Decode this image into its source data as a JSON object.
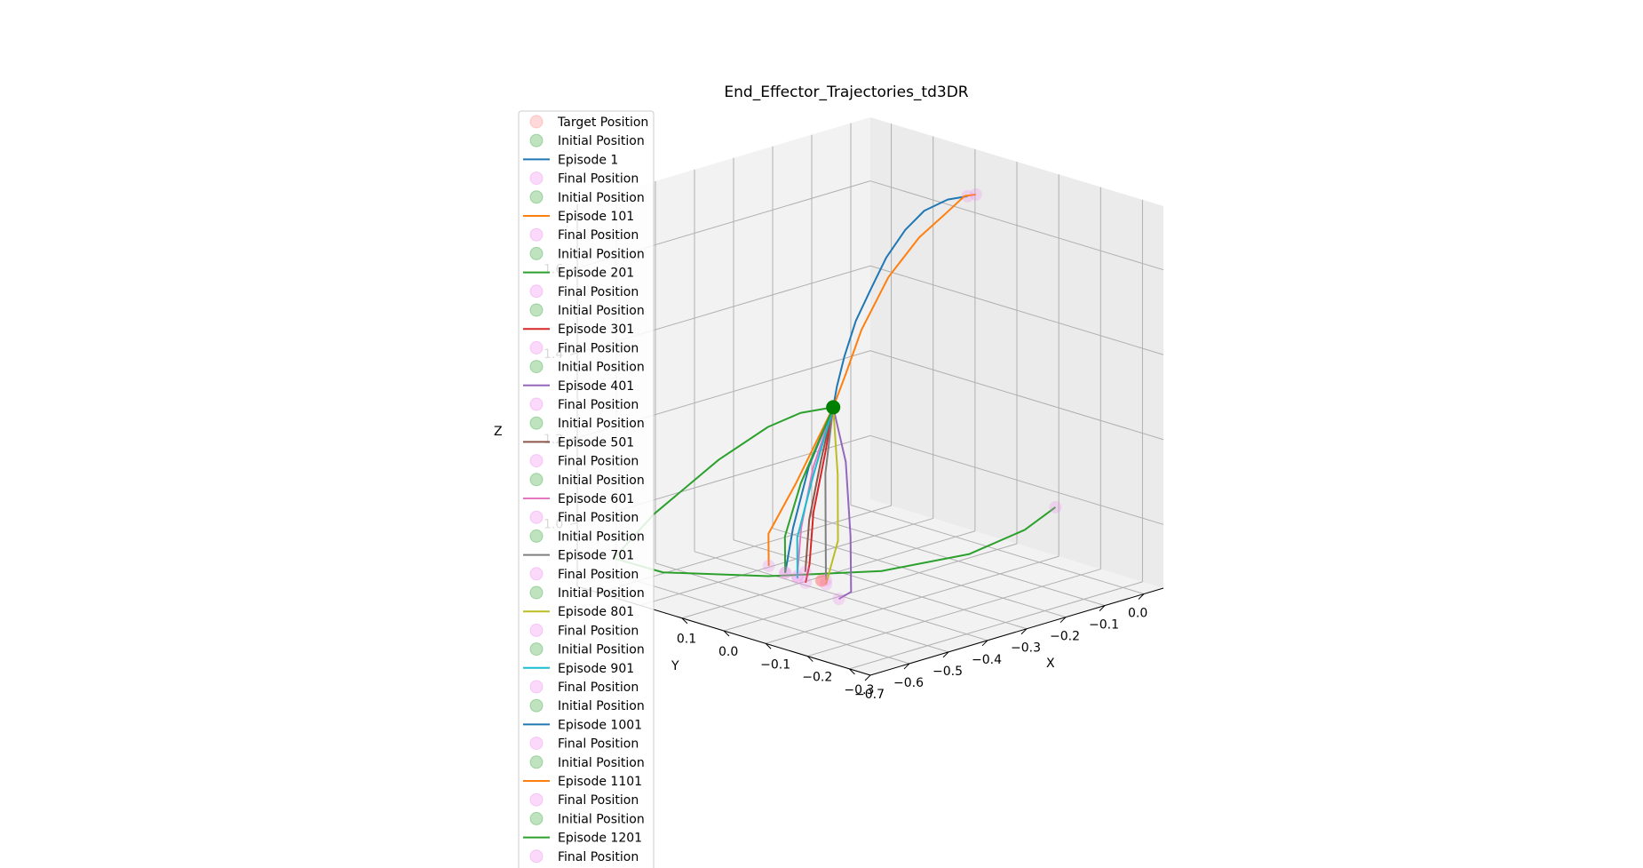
{
  "chart_data": {
    "type": "line",
    "projection": "3d",
    "title": "End_Effector_Trajectories_td3DR",
    "xlabel": "X",
    "ylabel": "Y",
    "zlabel": "Z",
    "x_ticks": [
      "−0.7",
      "−0.6",
      "−0.5",
      "−0.4",
      "−0.3",
      "−0.2",
      "−0.1",
      "0.0"
    ],
    "y_ticks": [
      "0.1",
      "0.0",
      "−0.1",
      "−0.2",
      "−0.3"
    ],
    "z_ticks": [
      "1.0",
      "1.2",
      "1.4",
      "1.6"
    ],
    "grid": true,
    "legend_placement": "upper-left (overflows below axes)",
    "colors": {
      "target": "#ff8080",
      "initial": "#2ca02c",
      "final": "#ee82ee",
      "init_marker_dark": "#008000"
    },
    "target_position": [
      -0.45,
      0.0,
      0.9
    ],
    "initial_position": [
      -0.42,
      0.0,
      1.3
    ],
    "legend_entries": [
      {
        "label": "Target Position",
        "kind": "marker",
        "color": "#ff8080"
      },
      {
        "label": "Initial Position",
        "kind": "marker",
        "color": "#2ca02c"
      },
      {
        "label": "Episode 1",
        "kind": "line",
        "color": "#1f77b4"
      },
      {
        "label": "Final Position",
        "kind": "marker",
        "color": "#ee82ee"
      },
      {
        "label": "Initial Position",
        "kind": "marker",
        "color": "#2ca02c"
      },
      {
        "label": "Episode 101",
        "kind": "line",
        "color": "#ff7f0e"
      },
      {
        "label": "Final Position",
        "kind": "marker",
        "color": "#ee82ee"
      },
      {
        "label": "Initial Position",
        "kind": "marker",
        "color": "#2ca02c"
      },
      {
        "label": "Episode 201",
        "kind": "line",
        "color": "#2ca02c"
      },
      {
        "label": "Final Position",
        "kind": "marker",
        "color": "#ee82ee"
      },
      {
        "label": "Initial Position",
        "kind": "marker",
        "color": "#2ca02c"
      },
      {
        "label": "Episode 301",
        "kind": "line",
        "color": "#d62728"
      },
      {
        "label": "Final Position",
        "kind": "marker",
        "color": "#ee82ee"
      },
      {
        "label": "Initial Position",
        "kind": "marker",
        "color": "#2ca02c"
      },
      {
        "label": "Episode 401",
        "kind": "line",
        "color": "#9467bd"
      },
      {
        "label": "Final Position",
        "kind": "marker",
        "color": "#ee82ee"
      },
      {
        "label": "Initial Position",
        "kind": "marker",
        "color": "#2ca02c"
      },
      {
        "label": "Episode 501",
        "kind": "line",
        "color": "#8c564b"
      },
      {
        "label": "Final Position",
        "kind": "marker",
        "color": "#ee82ee"
      },
      {
        "label": "Initial Position",
        "kind": "marker",
        "color": "#2ca02c"
      },
      {
        "label": "Episode 601",
        "kind": "line",
        "color": "#e377c2"
      },
      {
        "label": "Final Position",
        "kind": "marker",
        "color": "#ee82ee"
      },
      {
        "label": "Initial Position",
        "kind": "marker",
        "color": "#2ca02c"
      },
      {
        "label": "Episode 701",
        "kind": "line",
        "color": "#7f7f7f"
      },
      {
        "label": "Final Position",
        "kind": "marker",
        "color": "#ee82ee"
      },
      {
        "label": "Initial Position",
        "kind": "marker",
        "color": "#2ca02c"
      },
      {
        "label": "Episode 801",
        "kind": "line",
        "color": "#bcbd22"
      },
      {
        "label": "Final Position",
        "kind": "marker",
        "color": "#ee82ee"
      },
      {
        "label": "Initial Position",
        "kind": "marker",
        "color": "#2ca02c"
      },
      {
        "label": "Episode 901",
        "kind": "line",
        "color": "#17becf"
      },
      {
        "label": "Final Position",
        "kind": "marker",
        "color": "#ee82ee"
      },
      {
        "label": "Initial Position",
        "kind": "marker",
        "color": "#2ca02c"
      },
      {
        "label": "Episode 1001",
        "kind": "line",
        "color": "#1f77b4"
      },
      {
        "label": "Final Position",
        "kind": "marker",
        "color": "#ee82ee"
      },
      {
        "label": "Initial Position",
        "kind": "marker",
        "color": "#2ca02c"
      },
      {
        "label": "Episode 1101",
        "kind": "line",
        "color": "#ff7f0e"
      },
      {
        "label": "Final Position",
        "kind": "marker",
        "color": "#ee82ee"
      },
      {
        "label": "Initial Position",
        "kind": "marker",
        "color": "#2ca02c"
      },
      {
        "label": "Episode 1201",
        "kind": "line",
        "color": "#2ca02c"
      },
      {
        "label": "Final Position",
        "kind": "marker",
        "color": "#ee82ee"
      },
      {
        "label": "Initial Position",
        "kind": "marker",
        "color": "#2ca02c"
      }
    ],
    "series": [
      {
        "name": "Episode 1",
        "color": "#1f77b4",
        "points": [
          [
            -0.42,
            0.0,
            1.3
          ],
          [
            -0.4,
            0.01,
            1.34
          ],
          [
            -0.37,
            0.02,
            1.4
          ],
          [
            -0.33,
            0.03,
            1.47
          ],
          [
            -0.28,
            0.04,
            1.53
          ],
          [
            -0.22,
            0.06,
            1.58
          ],
          [
            -0.15,
            0.08,
            1.62
          ],
          [
            -0.08,
            0.1,
            1.64
          ],
          [
            -0.02,
            0.1,
            1.65
          ],
          [
            0.02,
            0.09,
            1.65
          ]
        ],
        "final": [
          0.02,
          0.09,
          1.65
        ]
      },
      {
        "name": "Episode 101",
        "color": "#ff7f0e",
        "points": [
          [
            -0.42,
            0.0,
            1.3
          ],
          [
            -0.41,
            -0.02,
            1.38
          ],
          [
            -0.38,
            -0.03,
            1.48
          ],
          [
            -0.3,
            -0.02,
            1.58
          ],
          [
            -0.2,
            0.0,
            1.64
          ],
          [
            -0.1,
            0.03,
            1.66
          ],
          [
            -0.02,
            0.06,
            1.67
          ],
          [
            0.02,
            0.07,
            1.66
          ]
        ],
        "final": [
          0.02,
          0.07,
          1.66
        ]
      },
      {
        "name": "Episode 201",
        "color": "#2ca02c",
        "points": [
          [
            -0.42,
            0.0,
            1.3
          ],
          [
            -0.45,
            0.05,
            1.28
          ],
          [
            -0.48,
            0.1,
            1.24
          ],
          [
            -0.52,
            0.18,
            1.15
          ],
          [
            -0.6,
            0.26,
            1.02
          ],
          [
            -0.66,
            0.3,
            0.92
          ],
          [
            -0.62,
            0.22,
            0.9
          ],
          [
            -0.5,
            0.08,
            0.9
          ],
          [
            -0.35,
            -0.05,
            0.91
          ],
          [
            -0.2,
            -0.12,
            0.93
          ],
          [
            -0.08,
            -0.14,
            0.96
          ],
          [
            0.02,
            -0.12,
            0.98
          ]
        ],
        "final": [
          0.02,
          -0.12,
          0.98
        ]
      },
      {
        "name": "Episode 301",
        "color": "#d62728",
        "points": [
          [
            -0.42,
            0.0,
            1.3
          ],
          [
            -0.44,
            0.0,
            1.2
          ],
          [
            -0.46,
            0.01,
            1.06
          ],
          [
            -0.47,
            0.01,
            0.94
          ],
          [
            -0.48,
            0.01,
            0.9
          ]
        ],
        "final": [
          -0.48,
          0.01,
          0.9
        ]
      },
      {
        "name": "Episode 401",
        "color": "#9467bd",
        "points": [
          [
            -0.42,
            0.0,
            1.3
          ],
          [
            -0.42,
            -0.03,
            1.18
          ],
          [
            -0.44,
            -0.06,
            1.02
          ],
          [
            -0.46,
            -0.08,
            0.9
          ],
          [
            -0.47,
            -0.06,
            0.88
          ]
        ],
        "final": [
          -0.47,
          -0.06,
          0.88
        ]
      },
      {
        "name": "Episode 501",
        "color": "#8c564b",
        "points": [
          [
            -0.42,
            0.0,
            1.3
          ],
          [
            -0.44,
            0.01,
            1.18
          ],
          [
            -0.46,
            0.02,
            1.04
          ],
          [
            -0.47,
            0.02,
            0.92
          ]
        ],
        "final": [
          -0.47,
          0.02,
          0.92
        ]
      },
      {
        "name": "Episode 601",
        "color": "#e377c2",
        "points": [
          [
            -0.42,
            0.0,
            1.3
          ],
          [
            -0.45,
            0.02,
            1.16
          ],
          [
            -0.47,
            0.03,
            1.02
          ],
          [
            -0.48,
            0.03,
            0.91
          ]
        ],
        "final": [
          -0.48,
          0.03,
          0.91
        ]
      },
      {
        "name": "Episode 701",
        "color": "#7f7f7f",
        "points": [
          [
            -0.42,
            0.0,
            1.3
          ],
          [
            -0.44,
            0.0,
            1.15
          ],
          [
            -0.45,
            -0.01,
            1.0
          ],
          [
            -0.46,
            -0.02,
            0.91
          ]
        ],
        "final": [
          -0.46,
          -0.02,
          0.91
        ]
      },
      {
        "name": "Episode 801",
        "color": "#bcbd22",
        "points": [
          [
            -0.42,
            0.0,
            1.3
          ],
          [
            -0.43,
            -0.02,
            1.15
          ],
          [
            -0.44,
            -0.03,
            1.0
          ],
          [
            -0.46,
            -0.02,
            0.9
          ]
        ],
        "final": [
          -0.46,
          -0.02,
          0.9
        ]
      },
      {
        "name": "Episode 901",
        "color": "#17becf",
        "points": [
          [
            -0.42,
            0.0,
            1.3
          ],
          [
            -0.45,
            0.02,
            1.14
          ],
          [
            -0.48,
            0.03,
            1.0
          ],
          [
            -0.49,
            0.02,
            0.91
          ]
        ],
        "final": [
          -0.49,
          0.02,
          0.91
        ]
      },
      {
        "name": "Episode 1001",
        "color": "#1f77b4",
        "points": [
          [
            -0.42,
            0.0,
            1.3
          ],
          [
            -0.45,
            0.03,
            1.16
          ],
          [
            -0.48,
            0.04,
            1.02
          ],
          [
            -0.5,
            0.04,
            0.92
          ]
        ],
        "final": [
          -0.5,
          0.04,
          0.92
        ]
      },
      {
        "name": "Episode 1101",
        "color": "#ff7f0e",
        "points": [
          [
            -0.42,
            0.0,
            1.3
          ],
          [
            -0.46,
            0.05,
            1.12
          ],
          [
            -0.5,
            0.08,
            1.0
          ],
          [
            -0.51,
            0.07,
            0.93
          ]
        ],
        "final": [
          -0.51,
          0.07,
          0.93
        ]
      },
      {
        "name": "Episode 1201",
        "color": "#2ca02c",
        "points": [
          [
            -0.42,
            0.0,
            1.3
          ],
          [
            -0.46,
            0.04,
            1.12
          ],
          [
            -0.49,
            0.05,
            1.0
          ],
          [
            -0.5,
            0.04,
            0.92
          ]
        ],
        "final": [
          -0.5,
          0.04,
          0.92
        ]
      }
    ]
  }
}
